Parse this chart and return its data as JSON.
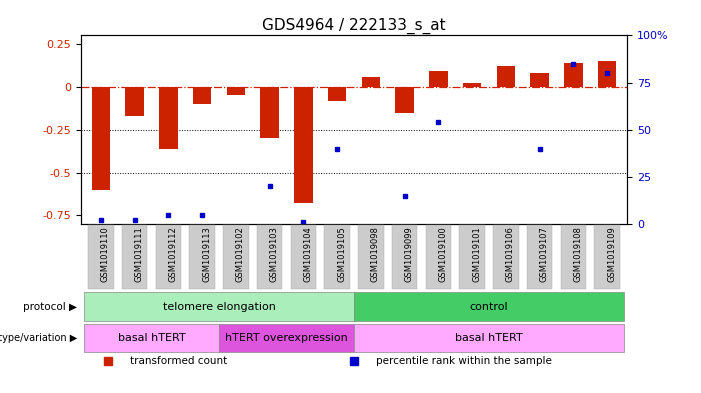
{
  "title": "GDS4964 / 222133_s_at",
  "samples": [
    "GSM1019110",
    "GSM1019111",
    "GSM1019112",
    "GSM1019113",
    "GSM1019102",
    "GSM1019103",
    "GSM1019104",
    "GSM1019105",
    "GSM1019098",
    "GSM1019099",
    "GSM1019100",
    "GSM1019101",
    "GSM1019106",
    "GSM1019107",
    "GSM1019108",
    "GSM1019109"
  ],
  "bar_values": [
    -0.6,
    -0.17,
    -0.36,
    -0.1,
    -0.05,
    -0.3,
    -0.68,
    -0.08,
    0.06,
    -0.15,
    0.09,
    0.02,
    0.12,
    0.08,
    0.14,
    0.15
  ],
  "dot_values_pct": [
    2,
    2,
    5,
    5,
    null,
    20,
    1,
    40,
    null,
    15,
    54,
    null,
    null,
    40,
    85,
    80
  ],
  "ylim_left": [
    -0.8,
    0.3
  ],
  "ylim_right": [
    0,
    100
  ],
  "bar_color": "#cc2200",
  "dot_color": "#0000cc",
  "dotted_lines": [
    -0.25,
    -0.5
  ],
  "right_ticks": [
    0,
    25,
    50,
    75,
    100
  ],
  "right_tick_labels": [
    "0",
    "25",
    "50",
    "75",
    "100%"
  ],
  "left_ticks": [
    -0.75,
    -0.5,
    -0.25,
    0,
    0.25
  ],
  "background_color": "#ffffff",
  "protocol_labels": [
    {
      "text": "telomere elongation",
      "start": 0,
      "end": 7,
      "color": "#aaeebb"
    },
    {
      "text": "control",
      "start": 8,
      "end": 15,
      "color": "#44cc66"
    }
  ],
  "genotype_labels": [
    {
      "text": "basal hTERT",
      "start": 0,
      "end": 3,
      "color": "#ffaaff"
    },
    {
      "text": "hTERT overexpression",
      "start": 4,
      "end": 7,
      "color": "#dd55dd"
    },
    {
      "text": "basal hTERT",
      "start": 8,
      "end": 15,
      "color": "#ffaaff"
    }
  ],
  "legend_items": [
    {
      "label": "transformed count",
      "color": "#cc2200"
    },
    {
      "label": "percentile rank within the sample",
      "color": "#0000cc"
    }
  ],
  "title_color": "#000000",
  "left_tick_color": "#cc2200",
  "right_tick_color": "#0000cc",
  "xlabel_bg": "#cccccc"
}
